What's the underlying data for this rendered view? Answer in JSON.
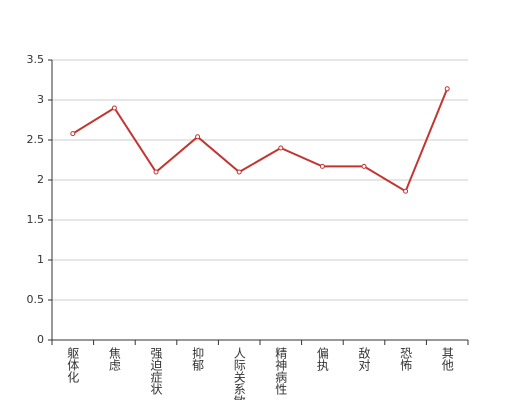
{
  "chart_data": {
    "type": "line",
    "categories": [
      "躯体化",
      "焦虑",
      "强迫症状",
      "抑郁",
      "人际关系敏感",
      "精神病性",
      "偏执",
      "敌对",
      "恐怖",
      "其他"
    ],
    "series": [
      {
        "color": "#c23531",
        "values": [
          2.58,
          2.9,
          2.1,
          2.54,
          2.1,
          2.4,
          2.17,
          2.17,
          1.86,
          3.14
        ]
      }
    ],
    "ylim": [
      0,
      3.5
    ],
    "yticks": [
      0,
      0.5,
      1,
      1.5,
      2,
      2.5,
      3,
      3.5
    ],
    "grid": true
  }
}
